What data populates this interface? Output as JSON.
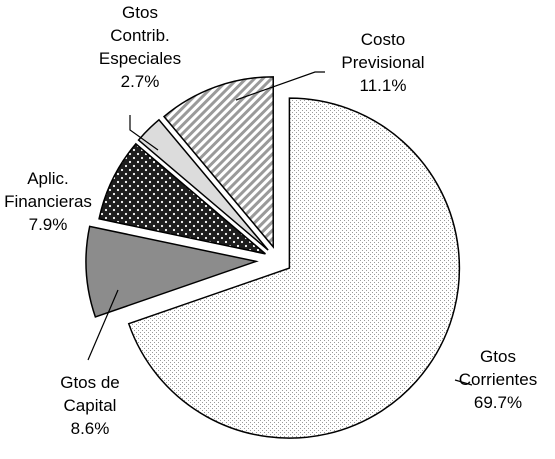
{
  "chart_data": {
    "type": "pie",
    "title": "",
    "slices": [
      {
        "label_lines": [
          "Gtos",
          "Corrientes",
          "69.7%"
        ],
        "value": 69.7,
        "pattern": "dots-fine"
      },
      {
        "label_lines": [
          "Gtos de",
          "Capital",
          "8.6%"
        ],
        "value": 8.6,
        "pattern": "solid-gray"
      },
      {
        "label_lines": [
          "Aplic.",
          "Financieras",
          "7.9%"
        ],
        "value": 7.9,
        "pattern": "dots-white-on-dark"
      },
      {
        "label_lines": [
          "Gtos",
          "Contrib.",
          "Especiales",
          "2.7%"
        ],
        "value": 2.7,
        "pattern": "light-gray"
      },
      {
        "label_lines": [
          "Costo",
          "Previsional",
          "11.1%"
        ],
        "value": 11.1,
        "pattern": "diagonal-stripes"
      }
    ],
    "legend": "none",
    "colors": {
      "outline": "#000000",
      "solid_gray": "#8c8c8c",
      "dark": "#1e1e1e",
      "light_gray": "#dcdcdc",
      "stripes": "#9a9a9a",
      "fine_dots": "#9a9a9a"
    }
  }
}
